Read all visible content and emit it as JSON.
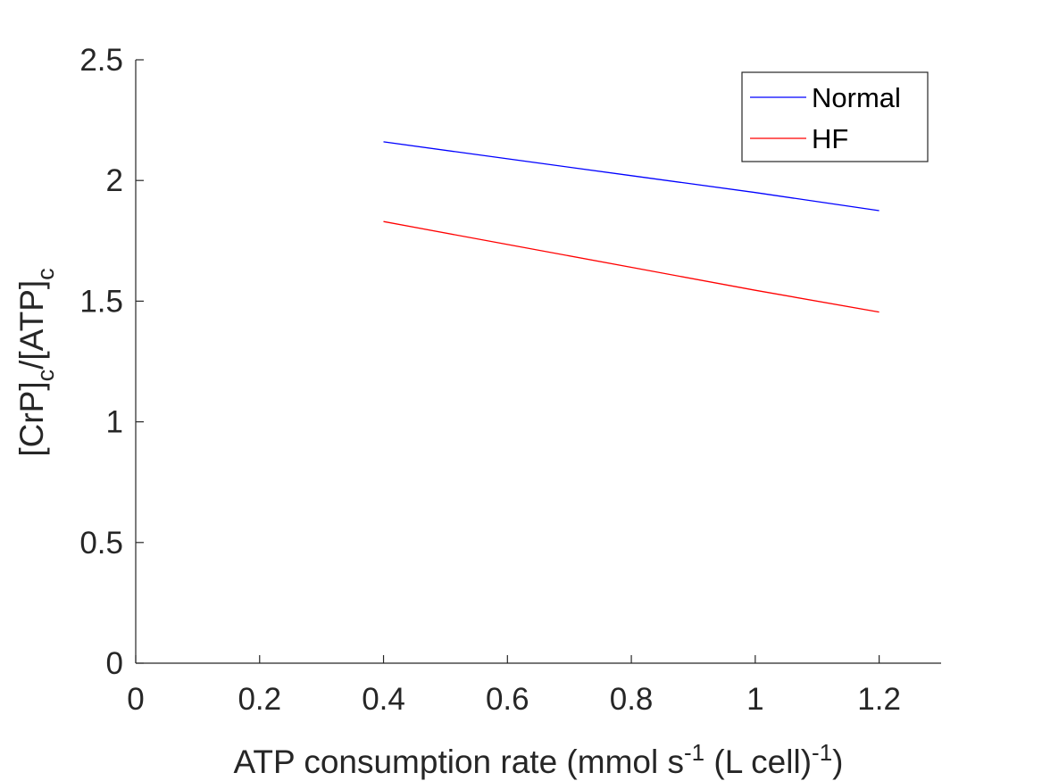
{
  "chart_data": {
    "type": "line",
    "xlabel": {
      "base": "ATP consumption rate (mmol s",
      "sup1": "-1",
      "mid": " (L cell)",
      "sup2": "-1",
      "end": ")"
    },
    "ylabel": {
      "p1": "[CrP]",
      "sub1": "c",
      "p2": "/[ATP]",
      "sub2": "c"
    },
    "xlim": [
      0,
      1.3
    ],
    "ylim": [
      0,
      2.5
    ],
    "xticks": [
      0,
      0.2,
      0.4,
      0.6,
      0.8,
      1,
      1.2
    ],
    "xtick_labels": [
      "0",
      "0.2",
      "0.4",
      "0.6",
      "0.8",
      "1",
      "1.2"
    ],
    "yticks": [
      0,
      0.5,
      1,
      1.5,
      2,
      2.5
    ],
    "ytick_labels": [
      "0",
      "0.5",
      "1",
      "1.5",
      "2",
      "2.5"
    ],
    "grid": false,
    "legend_position": "top-right",
    "series": [
      {
        "name": "Normal",
        "color": "#0000ff",
        "x": [
          0.4,
          0.6,
          0.8,
          1.0,
          1.2
        ],
        "y": [
          2.16,
          2.09,
          2.02,
          1.95,
          1.875
        ]
      },
      {
        "name": "HF",
        "color": "#ff0000",
        "x": [
          0.4,
          0.6,
          0.8,
          1.0,
          1.2
        ],
        "y": [
          1.83,
          1.735,
          1.64,
          1.545,
          1.455
        ]
      }
    ]
  }
}
